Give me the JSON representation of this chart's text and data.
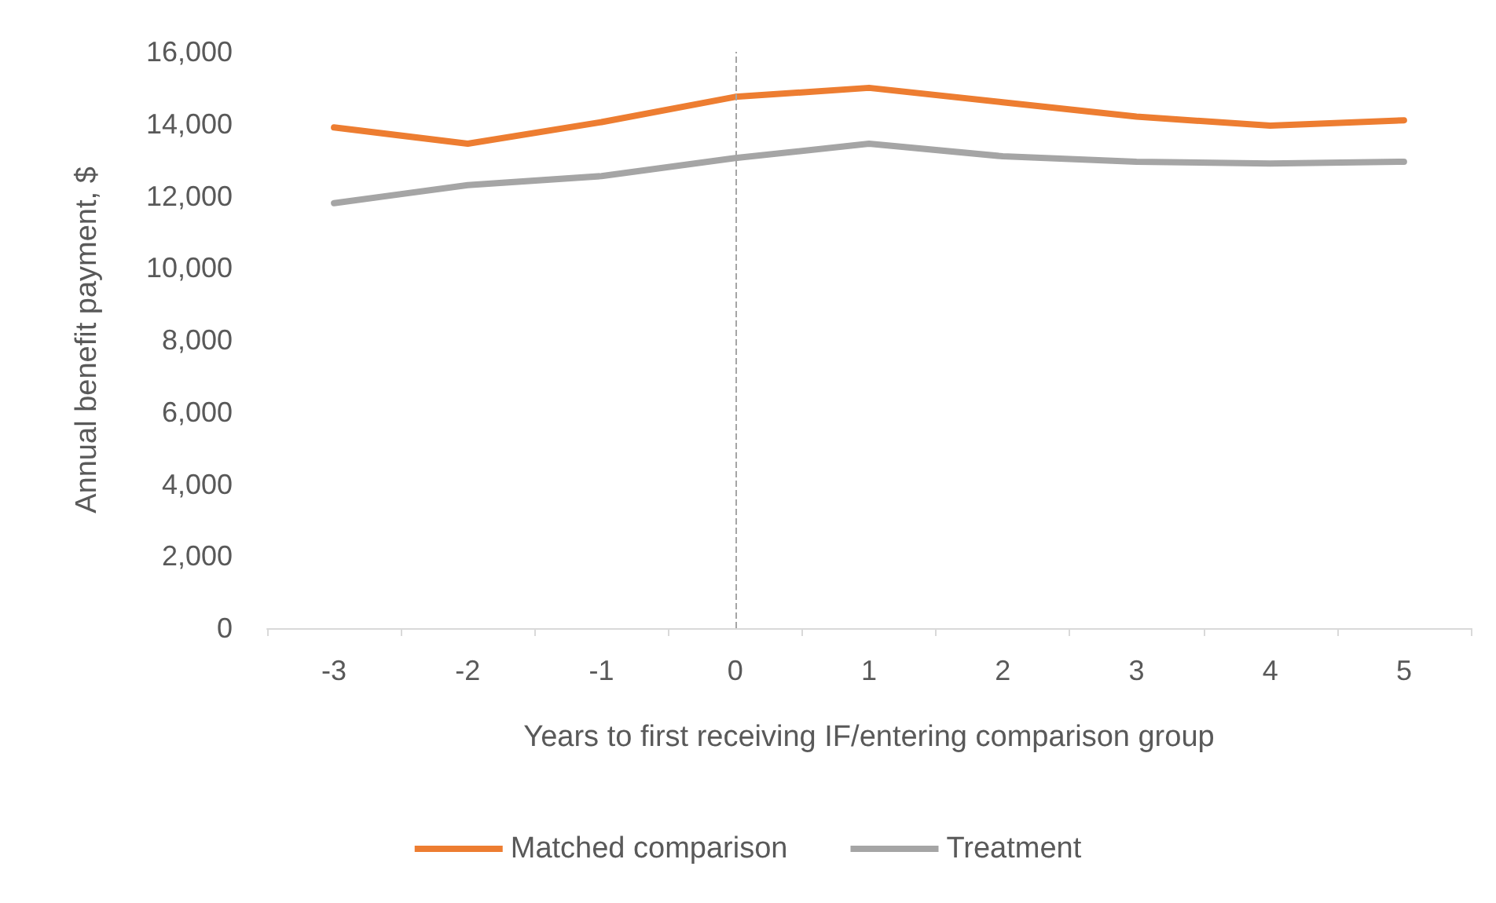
{
  "chart_data": {
    "type": "line",
    "xlabel": "Years to first receiving IF/entering comparison group",
    "ylabel": "Annual benefit payment, $",
    "categories": [
      "-3",
      "-2",
      "-1",
      "0",
      "1",
      "2",
      "3",
      "4",
      "5"
    ],
    "series": [
      {
        "name": "Matched comparison",
        "color": "#ed7d31",
        "values": [
          13900,
          13450,
          14050,
          14750,
          15000,
          14600,
          14200,
          13950,
          14100
        ]
      },
      {
        "name": "Treatment",
        "color": "#a5a5a5",
        "values": [
          11800,
          12300,
          12550,
          13050,
          13450,
          13100,
          12950,
          12900,
          12950
        ]
      }
    ],
    "ylim": [
      0,
      16000
    ],
    "yticks": [
      0,
      {
        "value": 2000,
        "label": "2,000"
      },
      {
        "value": 4000,
        "label": "4,000"
      },
      {
        "value": 6000,
        "label": "6,000"
      },
      {
        "value": 8000,
        "label": "8,000"
      },
      {
        "value": 10000,
        "label": "10,000"
      },
      {
        "value": 12000,
        "label": "12,000"
      },
      {
        "value": 14000,
        "label": "14,000"
      },
      {
        "value": 16000,
        "label": "16,000"
      }
    ],
    "ref_lines": [
      {
        "axis": "x",
        "value": "0",
        "color": "#a5a5a5",
        "line_style": "dashed"
      }
    ],
    "grid": false,
    "legend": "bottom",
    "marker": "none",
    "line_style": "solid"
  }
}
